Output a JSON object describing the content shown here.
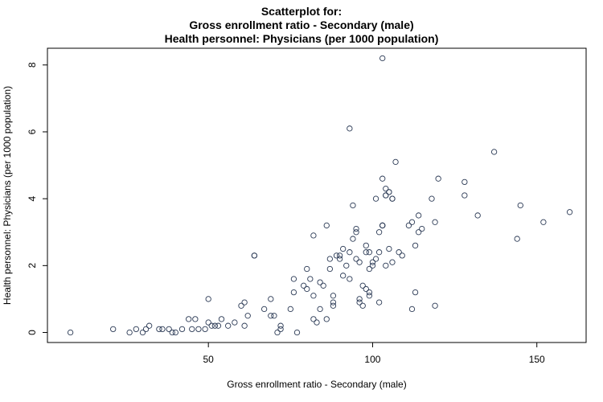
{
  "chart_data": {
    "type": "scatter",
    "title_lines": [
      "Scatterplot for:",
      "Gross enrollment ratio - Secondary (male)",
      "Health personnel: Physicians (per 1000 population)"
    ],
    "xlabel": "Gross enrollment ratio - Secondary (male)",
    "ylabel": "Health personnel: Physicians (per 1000 population)",
    "xlim": [
      1,
      165
    ],
    "ylim": [
      -0.3,
      8.5
    ],
    "xticks": [
      50,
      100,
      150
    ],
    "yticks": [
      0,
      2,
      4,
      6,
      8
    ],
    "marker": "open-circle",
    "point_color": "#2b3a55",
    "points": [
      [
        8,
        0
      ],
      [
        21,
        0.1
      ],
      [
        26,
        0
      ],
      [
        28,
        0.1
      ],
      [
        30,
        0
      ],
      [
        31,
        0.1
      ],
      [
        32,
        0.2
      ],
      [
        35,
        0.1
      ],
      [
        36,
        0.1
      ],
      [
        38,
        0.1
      ],
      [
        39,
        0
      ],
      [
        40,
        0
      ],
      [
        42,
        0.1
      ],
      [
        44,
        0.4
      ],
      [
        45,
        0.1
      ],
      [
        46,
        0.4
      ],
      [
        47,
        0.1
      ],
      [
        49,
        0.1
      ],
      [
        50,
        1
      ],
      [
        50,
        0.3
      ],
      [
        51,
        0.2
      ],
      [
        52,
        0.2
      ],
      [
        53,
        0.2
      ],
      [
        54,
        0.4
      ],
      [
        56,
        0.2
      ],
      [
        58,
        0.3
      ],
      [
        60,
        0.8
      ],
      [
        61,
        0.9
      ],
      [
        61,
        0.2
      ],
      [
        62,
        0.5
      ],
      [
        64,
        2.3
      ],
      [
        64,
        2.3
      ],
      [
        67,
        0.7
      ],
      [
        69,
        1
      ],
      [
        69,
        0.5
      ],
      [
        70,
        0.5
      ],
      [
        71,
        0
      ],
      [
        72,
        0.1
      ],
      [
        72,
        0.2
      ],
      [
        75,
        0.7
      ],
      [
        76,
        1.6
      ],
      [
        76,
        1.2
      ],
      [
        77,
        0
      ],
      [
        79,
        1.4
      ],
      [
        80,
        1.3
      ],
      [
        80,
        1.9
      ],
      [
        81,
        1.6
      ],
      [
        82,
        0.4
      ],
      [
        82,
        1.1
      ],
      [
        82,
        2.9
      ],
      [
        83,
        0.3
      ],
      [
        84,
        0.7
      ],
      [
        84,
        1.5
      ],
      [
        85,
        1.4
      ],
      [
        86,
        3.2
      ],
      [
        86,
        0.4
      ],
      [
        87,
        2.2
      ],
      [
        87,
        1.9
      ],
      [
        88,
        0.8
      ],
      [
        88,
        1.1
      ],
      [
        88,
        0.9
      ],
      [
        89,
        2.3
      ],
      [
        90,
        2.2
      ],
      [
        90,
        2.3
      ],
      [
        91,
        2.5
      ],
      [
        91,
        1.7
      ],
      [
        92,
        2
      ],
      [
        93,
        1.6
      ],
      [
        93,
        2.4
      ],
      [
        93,
        6.1
      ],
      [
        94,
        3.8
      ],
      [
        94,
        2.8
      ],
      [
        95,
        3.1
      ],
      [
        95,
        3
      ],
      [
        95,
        2.2
      ],
      [
        96,
        2.1
      ],
      [
        96,
        1
      ],
      [
        96,
        0.9
      ],
      [
        97,
        0.8
      ],
      [
        97,
        1.4
      ],
      [
        98,
        2.4
      ],
      [
        98,
        2.6
      ],
      [
        98,
        1.3
      ],
      [
        99,
        1.9
      ],
      [
        99,
        1.2
      ],
      [
        99,
        1.1
      ],
      [
        99,
        2.4
      ],
      [
        100,
        2.1
      ],
      [
        100,
        2
      ],
      [
        101,
        4
      ],
      [
        101,
        2.2
      ],
      [
        102,
        3
      ],
      [
        102,
        0.9
      ],
      [
        102,
        2.4
      ],
      [
        103,
        3.2
      ],
      [
        103,
        3.2
      ],
      [
        103,
        3.2
      ],
      [
        103,
        4.6
      ],
      [
        103,
        8.2
      ],
      [
        104,
        4.1
      ],
      [
        104,
        4.1
      ],
      [
        104,
        4.3
      ],
      [
        104,
        2
      ],
      [
        105,
        4.2
      ],
      [
        105,
        4.2
      ],
      [
        105,
        2.5
      ],
      [
        106,
        4
      ],
      [
        106,
        4
      ],
      [
        106,
        2.1
      ],
      [
        107,
        5.1
      ],
      [
        108,
        2.4
      ],
      [
        109,
        2.3
      ],
      [
        111,
        3.2
      ],
      [
        112,
        3.3
      ],
      [
        112,
        0.7
      ],
      [
        113,
        2.6
      ],
      [
        113,
        1.2
      ],
      [
        114,
        3
      ],
      [
        114,
        3.5
      ],
      [
        115,
        3.1
      ],
      [
        118,
        4
      ],
      [
        119,
        3.3
      ],
      [
        120,
        4.6
      ],
      [
        119,
        0.8
      ],
      [
        128,
        4.5
      ],
      [
        128,
        4.1
      ],
      [
        132,
        3.5
      ],
      [
        137,
        5.4
      ],
      [
        144,
        2.8
      ],
      [
        145,
        3.8
      ],
      [
        152,
        3.3
      ],
      [
        160,
        3.6
      ]
    ]
  }
}
